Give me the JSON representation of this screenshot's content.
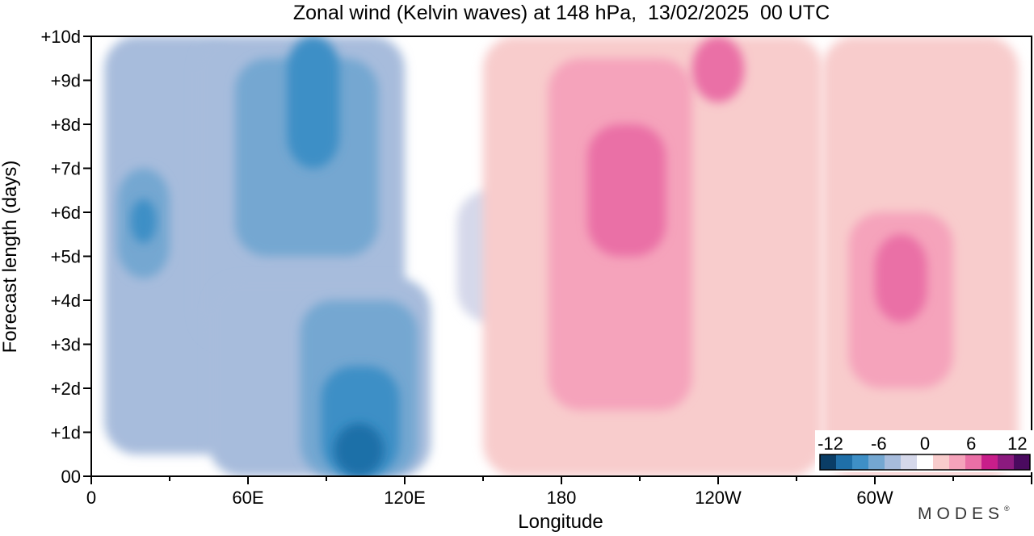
{
  "chart_data": {
    "type": "heatmap",
    "title": "Zonal wind (Kelvin waves) at 148 hPa,  13/02/2025  00 UTC",
    "xlabel": "Longitude",
    "ylabel": "Forecast length (days)",
    "x_ticks": [
      "0",
      "60E",
      "120E",
      "180",
      "120W",
      "60W"
    ],
    "x_tick_lon": [
      0,
      60,
      120,
      180,
      240,
      300
    ],
    "xlim": [
      0,
      360
    ],
    "y_ticks": [
      "00",
      "+1d",
      "+2d",
      "+3d",
      "+4d",
      "+5d",
      "+6d",
      "+7d",
      "+8d",
      "+9d",
      "+10d"
    ],
    "ylim": [
      0,
      10
    ],
    "colorbar": {
      "labels": [
        "-12",
        "-6",
        "0",
        "6",
        "12"
      ],
      "levels": [
        -12,
        -10,
        -8,
        -6,
        -4,
        -2,
        0,
        2,
        4,
        6,
        8,
        10,
        12
      ],
      "colors": [
        "#0a3d66",
        "#1f6fa8",
        "#3e8fc6",
        "#74a7d1",
        "#a7bcdc",
        "#d5d8ea",
        "#ffffff",
        "#f8cccc",
        "#f5a3bb",
        "#ea6fa6",
        "#c81e8a",
        "#8c1a7f",
        "#4a0a5f"
      ]
    },
    "fields": [
      {
        "lon_min": 5,
        "lon_max": 55,
        "day_min": 0.5,
        "day_max": 10,
        "value": -3
      },
      {
        "lon_min": 10,
        "lon_max": 30,
        "day_min": 4.5,
        "day_max": 7,
        "value": -6
      },
      {
        "lon_min": 15,
        "lon_max": 25,
        "day_min": 5.3,
        "day_max": 6.3,
        "value": -8
      },
      {
        "lon_min": 40,
        "lon_max": 120,
        "day_min": 3,
        "day_max": 10,
        "value": -4
      },
      {
        "lon_min": 55,
        "lon_max": 110,
        "day_min": 5,
        "day_max": 9.5,
        "value": -6
      },
      {
        "lon_min": 75,
        "lon_max": 95,
        "day_min": 7,
        "day_max": 10,
        "value": -8
      },
      {
        "lon_min": 45,
        "lon_max": 130,
        "day_min": 0,
        "day_max": 4.5,
        "value": -3
      },
      {
        "lon_min": 80,
        "lon_max": 125,
        "day_min": 0,
        "day_max": 4,
        "value": -6
      },
      {
        "lon_min": 88,
        "lon_max": 118,
        "day_min": 0,
        "day_max": 2.5,
        "value": -8
      },
      {
        "lon_min": 93,
        "lon_max": 112,
        "day_min": 0,
        "day_max": 1.2,
        "value": -10
      },
      {
        "lon_min": 140,
        "lon_max": 170,
        "day_min": 3.5,
        "day_max": 6.5,
        "value": -2
      },
      {
        "lon_min": 150,
        "lon_max": 280,
        "day_min": 0,
        "day_max": 10,
        "value": 2
      },
      {
        "lon_min": 175,
        "lon_max": 230,
        "day_min": 1.5,
        "day_max": 9.5,
        "value": 4
      },
      {
        "lon_min": 190,
        "lon_max": 220,
        "day_min": 5,
        "day_max": 8,
        "value": 6
      },
      {
        "lon_min": 230,
        "lon_max": 250,
        "day_min": 8.5,
        "day_max": 10,
        "value": 7
      },
      {
        "lon_min": 280,
        "lon_max": 355,
        "day_min": 0,
        "day_max": 10,
        "value": 2
      },
      {
        "lon_min": 290,
        "lon_max": 330,
        "day_min": 2,
        "day_max": 6,
        "value": 4
      },
      {
        "lon_min": 300,
        "lon_max": 320,
        "day_min": 3.5,
        "day_max": 5.5,
        "value": 6
      }
    ]
  }
}
